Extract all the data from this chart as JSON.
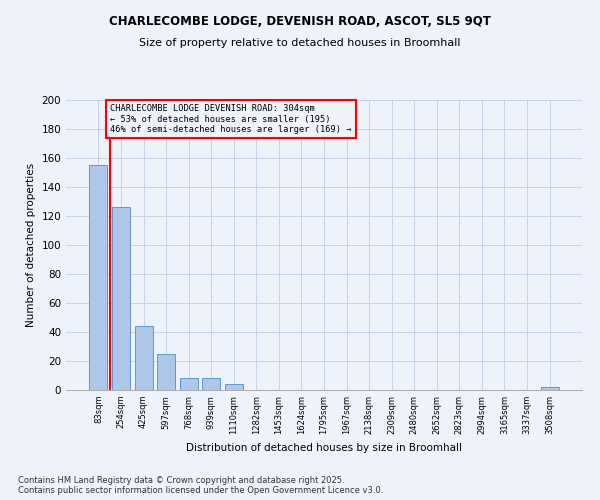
{
  "title1": "CHARLECOMBE LODGE, DEVENISH ROAD, ASCOT, SL5 9QT",
  "title2": "Size of property relative to detached houses in Broomhall",
  "xlabel": "Distribution of detached houses by size in Broomhall",
  "ylabel": "Number of detached properties",
  "bar_labels": [
    "83sqm",
    "254sqm",
    "425sqm",
    "597sqm",
    "768sqm",
    "939sqm",
    "1110sqm",
    "1282sqm",
    "1453sqm",
    "1624sqm",
    "1795sqm",
    "1967sqm",
    "2138sqm",
    "2309sqm",
    "2480sqm",
    "2652sqm",
    "2823sqm",
    "2994sqm",
    "3165sqm",
    "3337sqm",
    "3508sqm"
  ],
  "bar_values": [
    155,
    126,
    44,
    25,
    8,
    8,
    4,
    0,
    0,
    0,
    0,
    0,
    0,
    0,
    0,
    0,
    0,
    0,
    0,
    0,
    2
  ],
  "bar_color": "#aec6e8",
  "bar_edgecolor": "#5b9bd5",
  "vline_color": "red",
  "annotation_line1": "CHARLECOMBE LODGE DEVENISH ROAD: 304sqm",
  "annotation_line2": "← 53% of detached houses are smaller (195)",
  "annotation_line3": "46% of semi-detached houses are larger (169) →",
  "annotation_box_color": "red",
  "ylim": [
    0,
    200
  ],
  "yticks": [
    0,
    20,
    40,
    60,
    80,
    100,
    120,
    140,
    160,
    180,
    200
  ],
  "bg_color": "#eef2fb",
  "grid_color": "#c8d0e8",
  "footnote1": "Contains HM Land Registry data © Crown copyright and database right 2025.",
  "footnote2": "Contains public sector information licensed under the Open Government Licence v3.0."
}
